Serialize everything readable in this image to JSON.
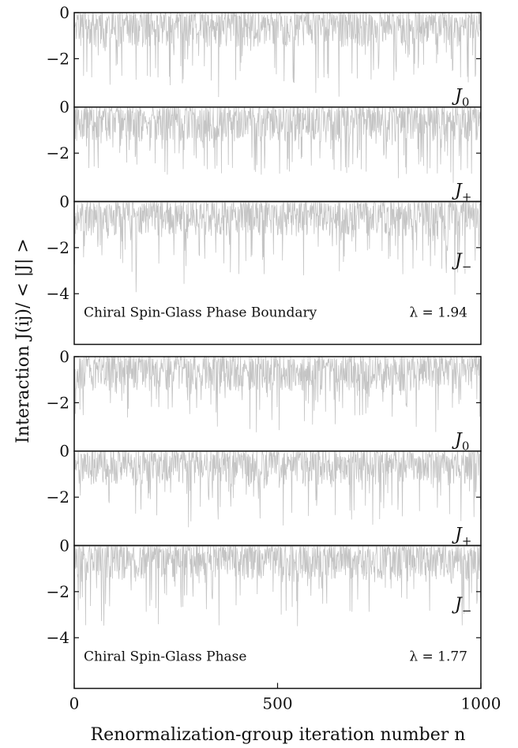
{
  "chart_data": {
    "type": "line",
    "xlabel": "Renormalization-group iteration number n",
    "ylabel": "Interaction J(ij)/ < |J| >",
    "xlim": [
      0,
      1000
    ],
    "xticks": [
      "0",
      "500",
      "1000"
    ],
    "grid": false,
    "line_color": "#c4c4c4",
    "groups": [
      {
        "title": "Chiral Spin-Glass Phase Boundary",
        "lambda_label": "λ = 1.94",
        "panels": [
          {
            "label": "J0",
            "label_main": "J",
            "label_sub": "0",
            "ylim": [
              -4.1,
              0
            ],
            "yticks": [
              "0",
              "−2"
            ],
            "seed": 11,
            "typical_min": -3.0,
            "extreme_min": -4.0
          },
          {
            "label": "J+",
            "label_main": "J",
            "label_sub": "+",
            "ylim": [
              -4.1,
              0
            ],
            "yticks": [
              "0",
              "−2"
            ],
            "seed": 23,
            "typical_min": -2.9,
            "extreme_min": -3.4
          },
          {
            "label": "J−",
            "label_main": "J",
            "label_sub": "−",
            "ylim": [
              -6.2,
              0
            ],
            "yticks": [
              "0",
              "−2",
              "−4"
            ],
            "seed": 37,
            "typical_min": -3.2,
            "extreme_min": -4.3
          }
        ]
      },
      {
        "title": "Chiral Spin-Glass Phase",
        "lambda_label": "λ = 1.77",
        "panels": [
          {
            "label": "J0",
            "label_main": "J",
            "label_sub": "0",
            "ylim": [
              -4.1,
              0
            ],
            "yticks": [
              "0",
              "−2"
            ],
            "seed": 53,
            "typical_min": -2.8,
            "extreme_min": -3.3
          },
          {
            "label": "J+",
            "label_main": "J",
            "label_sub": "+",
            "ylim": [
              -4.1,
              0
            ],
            "yticks": [
              "0",
              "−2"
            ],
            "seed": 71,
            "typical_min": -2.8,
            "extreme_min": -3.4
          },
          {
            "label": "J−",
            "label_main": "J",
            "label_sub": "−",
            "ylim": [
              -6.2,
              0
            ],
            "yticks": [
              "0",
              "−2",
              "−4"
            ],
            "seed": 89,
            "typical_min": -3.0,
            "extreme_min": -3.6
          }
        ]
      }
    ]
  }
}
